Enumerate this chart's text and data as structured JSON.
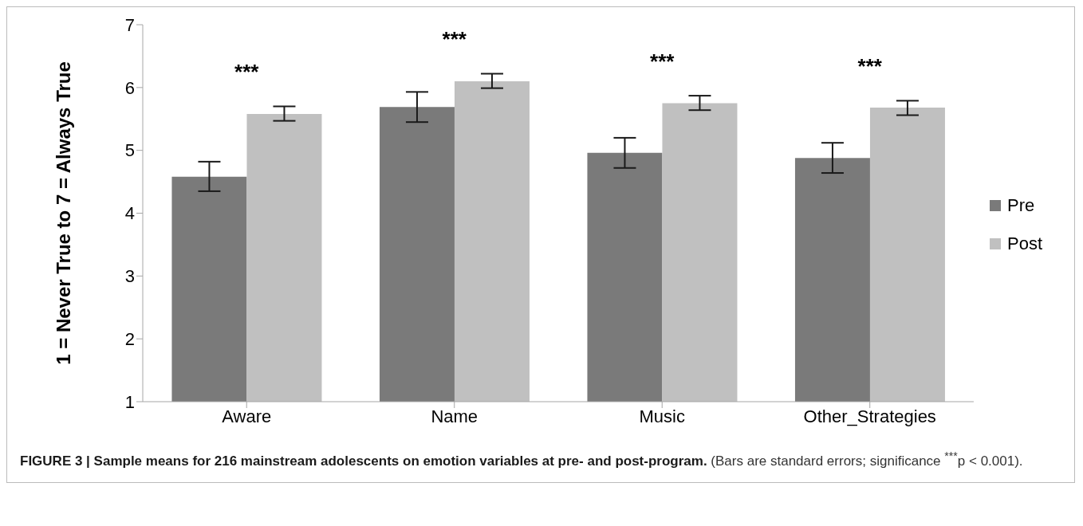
{
  "chart_data": {
    "type": "bar",
    "title": "FIGURE 3 | Sample means for 216 mainstream adolescents on emotion variables at pre- and post-program.",
    "ylabel": "1 = Never True to 7 = Always True",
    "categories": [
      "Aware",
      "Name",
      "Music",
      "Other_Strategies"
    ],
    "series": [
      {
        "name": "Pre",
        "color": "#7a7a7a",
        "values": [
          4.58,
          5.69,
          4.96,
          4.88
        ],
        "errors": [
          [
            4.35,
            4.82
          ],
          [
            5.45,
            5.93
          ],
          [
            4.72,
            5.2
          ],
          [
            4.64,
            5.12
          ]
        ]
      },
      {
        "name": "Post",
        "color": "#c0c0c0",
        "values": [
          5.58,
          6.1,
          5.75,
          5.68
        ],
        "errors": [
          [
            5.47,
            5.7
          ],
          [
            5.99,
            6.22
          ],
          [
            5.64,
            5.87
          ],
          [
            5.56,
            5.79
          ]
        ]
      }
    ],
    "ylim": [
      1,
      7
    ],
    "yticks": [
      1,
      2,
      3,
      4,
      5,
      6,
      7
    ],
    "grid": false,
    "legend": "right",
    "annotations": [
      "***",
      "***",
      "***",
      "***",
      "(Bars are standard errors; significance $^{***}$p < 0.001)."
    ]
  }
}
